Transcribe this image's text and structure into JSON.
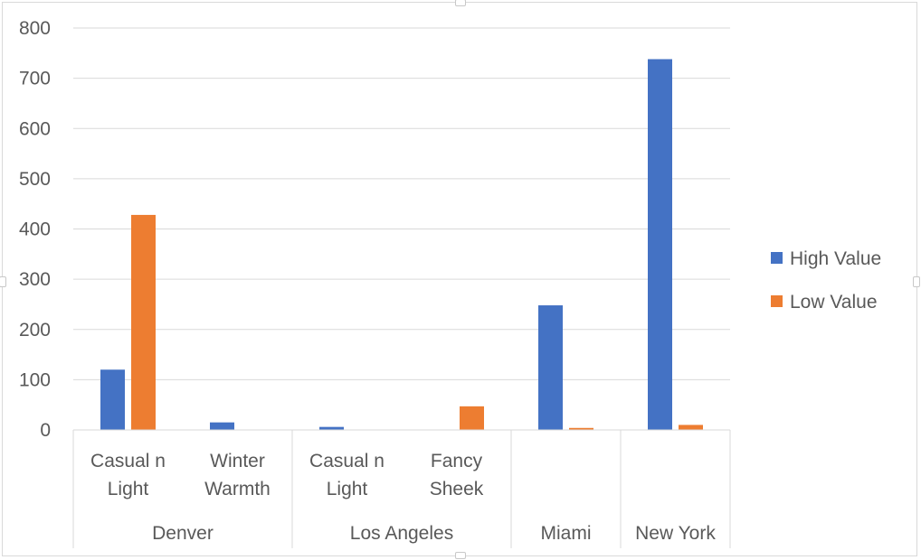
{
  "chart_data": {
    "type": "bar",
    "title": "",
    "xlabel": "",
    "ylabel": "",
    "ylim": [
      0,
      800
    ],
    "yticks": [
      0,
      100,
      200,
      300,
      400,
      500,
      600,
      700,
      800
    ],
    "grid": true,
    "legend_position": "right",
    "categories": [
      {
        "group": "Denver",
        "label_lines": [
          "Casual n",
          "Light"
        ]
      },
      {
        "group": "Denver",
        "label_lines": [
          "Winter",
          "Warmth"
        ]
      },
      {
        "group": "Los Angeles",
        "label_lines": [
          "Casual n",
          "Light"
        ]
      },
      {
        "group": "Los Angeles",
        "label_lines": [
          "Fancy",
          "Sheek"
        ]
      },
      {
        "group": "Miami",
        "label_lines": []
      },
      {
        "group": "New York",
        "label_lines": []
      }
    ],
    "groups": [
      {
        "name": "Denver",
        "span": 2
      },
      {
        "name": "Los Angeles",
        "span": 2
      },
      {
        "name": "Miami",
        "span": 1
      },
      {
        "name": "New York",
        "span": 1
      }
    ],
    "series": [
      {
        "name": "High Value",
        "color": "#4472c4",
        "values": [
          120,
          15,
          6,
          0,
          248,
          738
        ]
      },
      {
        "name": "Low Value",
        "color": "#ed7d31",
        "values": [
          428,
          0,
          0,
          47,
          4,
          10
        ]
      }
    ]
  }
}
